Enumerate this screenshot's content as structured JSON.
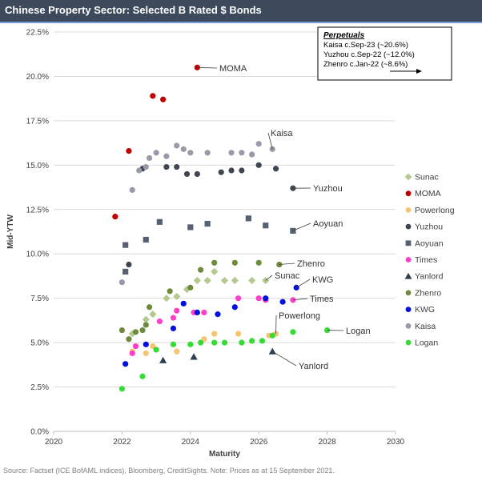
{
  "chart_data": {
    "type": "scatter",
    "title": "Chinese Property Sector: Selected B Rated $ Bonds",
    "xlabel": "Maturity",
    "ylabel": "Mid-YTW",
    "xlim": [
      2020,
      2030
    ],
    "ylim": [
      0,
      22.5
    ],
    "x_ticks": [
      "2020",
      "2022",
      "2024",
      "2026",
      "2028",
      "2030"
    ],
    "y_ticks": [
      "0.0%",
      "2.5%",
      "5.0%",
      "7.5%",
      "10.0%",
      "12.5%",
      "15.0%",
      "17.5%",
      "20.0%",
      "22.5%"
    ],
    "grid": "horizontal",
    "legend_position": "right",
    "series": [
      {
        "name": "Sunac",
        "color": "#b5c98e",
        "marker": "diamond",
        "points": [
          [
            22.3,
            5.5
          ],
          [
            22.7,
            6.3
          ],
          [
            22.9,
            6.6
          ],
          [
            23.3,
            7.5
          ],
          [
            23.6,
            7.6
          ],
          [
            23.9,
            8.0
          ],
          [
            24.2,
            8.5
          ],
          [
            24.5,
            8.5
          ],
          [
            24.7,
            9.0
          ],
          [
            25.0,
            8.5
          ],
          [
            25.3,
            8.5
          ],
          [
            25.8,
            8.5
          ],
          [
            26.2,
            8.5
          ]
        ]
      },
      {
        "name": "MOMA",
        "color": "#c00000",
        "marker": "circle",
        "points": [
          [
            21.8,
            12.1
          ],
          [
            22.2,
            15.8
          ],
          [
            22.9,
            18.9
          ],
          [
            23.2,
            18.7
          ],
          [
            24.2,
            20.5
          ]
        ]
      },
      {
        "name": "Powerlong",
        "color": "#f8c471",
        "marker": "circle",
        "points": [
          [
            22.3,
            4.5
          ],
          [
            22.7,
            4.4
          ],
          [
            22.9,
            4.8
          ],
          [
            23.6,
            4.5
          ],
          [
            24.4,
            5.2
          ],
          [
            24.7,
            5.5
          ],
          [
            25.4,
            5.5
          ],
          [
            26.3,
            5.4
          ],
          [
            26.5,
            5.5
          ]
        ]
      },
      {
        "name": "Yuzhou",
        "color": "#404554",
        "marker": "circle",
        "points": [
          [
            22.2,
            9.4
          ],
          [
            22.6,
            14.8
          ],
          [
            23.3,
            14.9
          ],
          [
            23.6,
            14.9
          ],
          [
            23.9,
            14.5
          ],
          [
            24.2,
            14.5
          ],
          [
            24.9,
            14.6
          ],
          [
            25.2,
            14.7
          ],
          [
            25.5,
            14.7
          ],
          [
            26.0,
            15.0
          ],
          [
            26.5,
            14.8
          ],
          [
            27.0,
            13.7
          ]
        ]
      },
      {
        "name": "Aoyuan",
        "color": "#586174",
        "marker": "square",
        "points": [
          [
            22.1,
            10.5
          ],
          [
            22.1,
            9.0
          ],
          [
            22.7,
            10.8
          ],
          [
            23.1,
            11.8
          ],
          [
            24.0,
            11.5
          ],
          [
            24.5,
            11.7
          ],
          [
            25.7,
            12.0
          ],
          [
            26.2,
            11.6
          ],
          [
            27.0,
            11.3
          ]
        ]
      },
      {
        "name": "Times",
        "color": "#ff3fc8",
        "marker": "circle",
        "points": [
          [
            22.3,
            4.4
          ],
          [
            22.4,
            4.8
          ],
          [
            23.1,
            6.2
          ],
          [
            23.5,
            6.4
          ],
          [
            23.6,
            6.8
          ],
          [
            24.1,
            6.7
          ],
          [
            24.4,
            6.7
          ],
          [
            25.4,
            7.5
          ],
          [
            26.0,
            7.5
          ],
          [
            26.2,
            7.4
          ],
          [
            27.0,
            7.4
          ]
        ]
      },
      {
        "name": "Yanlord",
        "color": "#2e3f50",
        "marker": "triangle",
        "points": [
          [
            23.2,
            4.0
          ],
          [
            24.1,
            4.2
          ],
          [
            26.4,
            4.5
          ]
        ]
      },
      {
        "name": "Zhenro",
        "color": "#6e8a3a",
        "marker": "circle",
        "points": [
          [
            22.0,
            5.7
          ],
          [
            22.2,
            5.2
          ],
          [
            22.4,
            5.6
          ],
          [
            22.6,
            5.7
          ],
          [
            22.7,
            6.0
          ],
          [
            22.8,
            7.0
          ],
          [
            23.4,
            7.9
          ],
          [
            24.0,
            8.1
          ],
          [
            24.3,
            9.1
          ],
          [
            24.7,
            9.5
          ],
          [
            25.3,
            9.5
          ],
          [
            26.0,
            9.5
          ],
          [
            26.6,
            9.4
          ]
        ]
      },
      {
        "name": "KWG",
        "color": "#0010e0",
        "marker": "circle",
        "points": [
          [
            22.1,
            3.8
          ],
          [
            22.7,
            4.9
          ],
          [
            23.5,
            5.8
          ],
          [
            23.8,
            7.2
          ],
          [
            24.2,
            6.7
          ],
          [
            24.8,
            6.6
          ],
          [
            25.3,
            7.0
          ],
          [
            26.2,
            7.5
          ],
          [
            26.7,
            7.3
          ],
          [
            27.1,
            8.1
          ]
        ]
      },
      {
        "name": "Kaisa",
        "color": "#9999aa",
        "marker": "circle",
        "points": [
          [
            22.0,
            8.4
          ],
          [
            22.3,
            13.6
          ],
          [
            22.5,
            14.7
          ],
          [
            22.7,
            14.9
          ],
          [
            22.8,
            15.4
          ],
          [
            23.0,
            15.7
          ],
          [
            23.3,
            15.5
          ],
          [
            23.6,
            16.1
          ],
          [
            23.8,
            15.9
          ],
          [
            24.0,
            15.7
          ],
          [
            24.5,
            15.7
          ],
          [
            25.2,
            15.7
          ],
          [
            25.5,
            15.7
          ],
          [
            25.8,
            15.6
          ],
          [
            26.0,
            16.2
          ],
          [
            26.4,
            15.9
          ]
        ]
      },
      {
        "name": "Logan",
        "color": "#33dd33",
        "marker": "circle",
        "points": [
          [
            22.0,
            2.4
          ],
          [
            22.6,
            3.1
          ],
          [
            23.0,
            4.6
          ],
          [
            23.5,
            4.9
          ],
          [
            24.0,
            4.9
          ],
          [
            24.3,
            5.0
          ],
          [
            24.7,
            5.0
          ],
          [
            25.0,
            5.0
          ],
          [
            25.5,
            5.0
          ],
          [
            25.8,
            5.1
          ],
          [
            26.1,
            5.1
          ],
          [
            26.4,
            5.4
          ],
          [
            27.0,
            5.6
          ],
          [
            28.0,
            5.7
          ]
        ]
      }
    ],
    "annotations": [
      {
        "text": "MOMA",
        "series": "MOMA"
      },
      {
        "text": "Kaisa",
        "series": "Kaisa"
      },
      {
        "text": "Yuzhou",
        "series": "Yuzhou"
      },
      {
        "text": "Aoyuan",
        "series": "Aoyuan"
      },
      {
        "text": "Zhenro",
        "series": "Zhenro"
      },
      {
        "text": "Sunac",
        "series": "Sunac"
      },
      {
        "text": "KWG",
        "series": "KWG"
      },
      {
        "text": "Times",
        "series": "Times"
      },
      {
        "text": "Powerlong",
        "series": "Powerlong"
      },
      {
        "text": "Logan",
        "series": "Logan"
      },
      {
        "text": "Yanlord",
        "series": "Yanlord"
      }
    ],
    "note_box": {
      "heading": "Perpetuals",
      "lines": [
        "Kaisa c.Sep-23 (~20.6%)",
        "Yuzhou c.Sep-22 (~12.0%)",
        "Zhenro c.Jan-22 (~8.6%)"
      ]
    }
  },
  "footer": "Source: Factset (ICE BofAML indices), Bloomberg, CreditSights. Note: Prices as at 15 September 2021."
}
